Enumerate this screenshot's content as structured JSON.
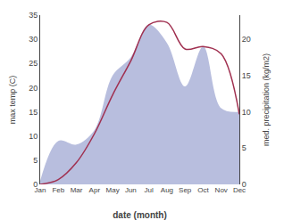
{
  "chart_data": {
    "type": "line",
    "xlabel": "date (month)",
    "ylabel": "max temp (C)",
    "y2label": "med. precipitation (kg/m2)",
    "categories": [
      "Jan",
      "Feb",
      "Mar",
      "Apr",
      "May",
      "Jun",
      "Jul",
      "Aug",
      "Sep",
      "Oct",
      "Nov",
      "Dec"
    ],
    "series": [
      {
        "type": "area",
        "axis": "y2",
        "color": "#b8bede",
        "values": [
          0.5,
          6.0,
          5.5,
          7.5,
          15.0,
          17.5,
          22.0,
          19.5,
          13.5,
          19.0,
          10.5,
          10.0
        ]
      },
      {
        "type": "line",
        "color": "#a03050",
        "values": [
          0.0,
          1.0,
          4.5,
          10.5,
          18.5,
          25.5,
          33.0,
          33.5,
          28.0,
          28.5,
          27.0,
          14.5
        ]
      }
    ],
    "ylim": [
      0,
      35
    ],
    "yticks": [
      0,
      5,
      10,
      15,
      20,
      25,
      30,
      35
    ],
    "y2lim": [
      0,
      23.33
    ],
    "y2ticks": [
      0,
      5,
      10,
      15,
      20
    ],
    "grid": false
  }
}
